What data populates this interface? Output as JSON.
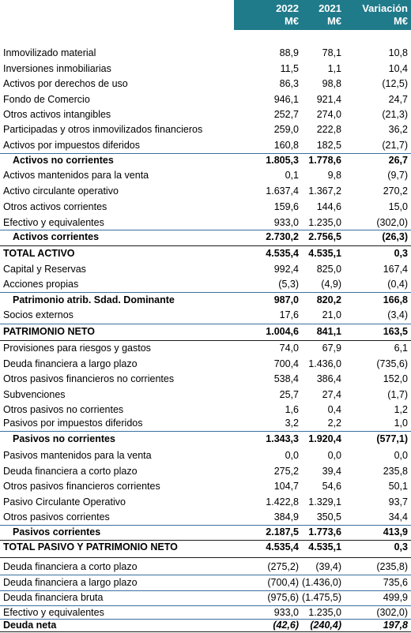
{
  "header": {
    "columns": [
      {
        "year": "2022",
        "unit": "M€"
      },
      {
        "year": "2021",
        "unit": "M€"
      },
      {
        "year": "Variación",
        "unit": "M€"
      }
    ]
  },
  "table": {
    "rows": [
      [
        "Inmovilizado material",
        "88,9",
        "78,1",
        "10,8"
      ],
      [
        "Inversiones inmobiliarias",
        "11,5",
        "1,1",
        "10,4"
      ],
      [
        "Activos por derechos de uso",
        "86,3",
        "98,8",
        "(12,5)"
      ],
      [
        "Fondo de Comercio",
        "946,1",
        "921,4",
        "24,7"
      ],
      [
        "Otros activos intangibles",
        "252,7",
        "274,0",
        "(21,3)"
      ],
      [
        "Participadas y otros inmovilizados financieros",
        "259,0",
        "222,8",
        "36,2"
      ],
      [
        "Activos por impuestos diferidos",
        "160,8",
        "182,5",
        "(21,7)"
      ],
      [
        "Activos no corrientes",
        "1.805,3",
        "1.778,6",
        "26,7"
      ],
      [
        "Activos mantenidos para la venta",
        "0,1",
        "9,8",
        "(9,7)"
      ],
      [
        "Activo circulante operativo",
        "1.637,4",
        "1.367,2",
        "270,2"
      ],
      [
        "Otros activos corrientes",
        "159,6",
        "144,6",
        "15,0"
      ],
      [
        "Efectivo y equivalentes",
        "933,0",
        "1.235,0",
        "(302,0)"
      ],
      [
        "Activos corrientes",
        "2.730,2",
        "2.756,5",
        "(26,3)"
      ],
      [
        "TOTAL ACTIVO",
        "4.535,4",
        "4.535,1",
        "0,3"
      ],
      [
        "Capital y Reservas",
        "992,4",
        "825,0",
        "167,4"
      ],
      [
        "Acciones propias",
        "(5,3)",
        "(4,9)",
        "(0,4)"
      ],
      [
        "Patrimonio atrib. Sdad. Dominante",
        "987,0",
        "820,2",
        "166,8"
      ],
      [
        "Socios externos",
        "17,6",
        "21,0",
        "(3,4)"
      ],
      [
        "PATRIMONIO NETO",
        "1.004,6",
        "841,1",
        "163,5"
      ],
      [
        "Provisiones para riesgos y gastos",
        "74,0",
        "67,9",
        "6,1"
      ],
      [
        "Deuda financiera a largo plazo",
        "700,4",
        "1.436,0",
        "(735,6)"
      ],
      [
        "Otros pasivos financieros no corrientes",
        "538,4",
        "386,4",
        "152,0"
      ],
      [
        "Subvenciones",
        "25,7",
        "27,4",
        "(1,7)"
      ],
      [
        "Otros pasivos no corrientes",
        "1,6",
        "0,4",
        "1,2"
      ],
      [
        "Pasivos por impuestos diferidos",
        "3,2",
        "2,2",
        "1,0"
      ],
      [
        "Pasivos no corrientes",
        "1.343,3",
        "1.920,4",
        "(577,1)"
      ],
      [
        "Pasivos mantenidos para la venta",
        "0,0",
        "0,0",
        "0,0"
      ],
      [
        "Deuda financiera a corto plazo",
        "275,2",
        "39,4",
        "235,8"
      ],
      [
        "Otros pasivos financieros corrientes",
        "104,7",
        "54,6",
        "50,1"
      ],
      [
        "Pasivo Circulante Operativo",
        "1.422,8",
        "1.329,1",
        "93,7"
      ],
      [
        "Otros pasivos corrientes",
        "384,9",
        "350,5",
        "34,4"
      ],
      [
        "Pasivos corrientes",
        "2.187,5",
        "1.773,6",
        "413,9"
      ],
      [
        "TOTAL PASIVO Y PATRIMONIO NETO",
        "4.535,4",
        "4.535,1",
        "0,3"
      ],
      [
        "Deuda financiera a corto plazo",
        "(275,2)",
        "(39,4)",
        "(235,8)"
      ],
      [
        "Deuda financiera a largo plazo",
        "(700,4)",
        "(1.436,0)",
        "735,6"
      ],
      [
        "Deuda financiera bruta",
        "(975,6)",
        "(1.475,5)",
        "499,9"
      ],
      [
        "Efectivo y equivalentes",
        "933,0",
        "1.235,0",
        "(302,0)"
      ],
      [
        "Deuda neta",
        "(42,6)",
        "(240,4)",
        "197,8"
      ]
    ]
  }
}
